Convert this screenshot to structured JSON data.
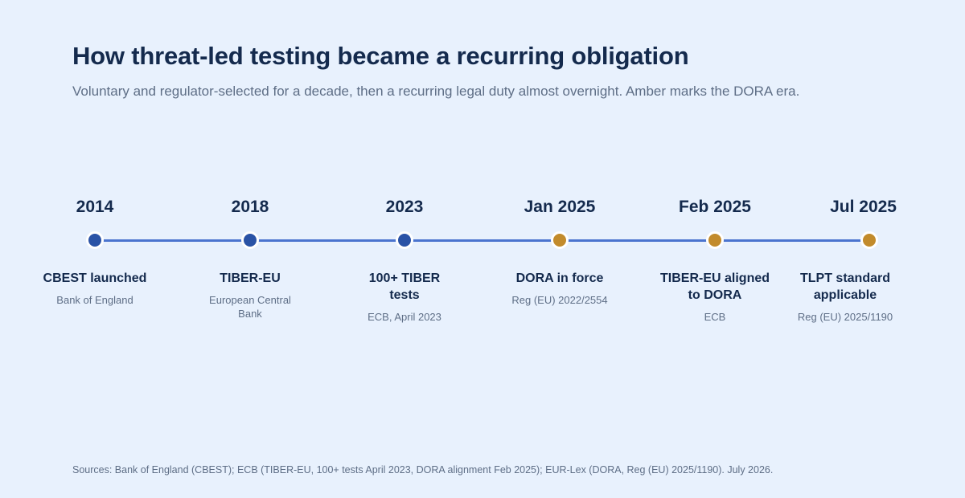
{
  "title": "How threat-led testing became a recurring obligation",
  "subtitle": "Voluntary and regulator-selected for a decade, then a recurring legal duty almost overnight. Amber marks the DORA era.",
  "colors": {
    "background": "#e8f1fd",
    "track": "#4a74cf",
    "pre_dora": "#2a53a6",
    "dora_era": "#c28b2c"
  },
  "milestones": [
    {
      "date": "2014",
      "label": "CBEST launched",
      "detail": "Bank of England",
      "era": "pre-dora"
    },
    {
      "date": "2018",
      "label": "TIBER-EU",
      "detail": "European Central Bank",
      "era": "pre-dora"
    },
    {
      "date": "2023",
      "label": "100+ TIBER tests",
      "detail": "ECB, April 2023",
      "era": "pre-dora"
    },
    {
      "date": "Jan 2025",
      "label": "DORA in force",
      "detail": "Reg (EU) 2022/2554",
      "era": "dora"
    },
    {
      "date": "Feb 2025",
      "label": "TIBER-EU aligned to DORA",
      "detail": "ECB",
      "era": "dora"
    },
    {
      "date": "Jul 2025",
      "label": "TLPT standard applicable",
      "detail": "Reg (EU) 2025/1190",
      "era": "dora"
    }
  ],
  "sources": "Sources: Bank of England (CBEST); ECB (TIBER-EU, 100+ tests April 2023, DORA alignment Feb 2025); EUR-Lex (DORA, Reg (EU) 2025/1190). July 2026."
}
